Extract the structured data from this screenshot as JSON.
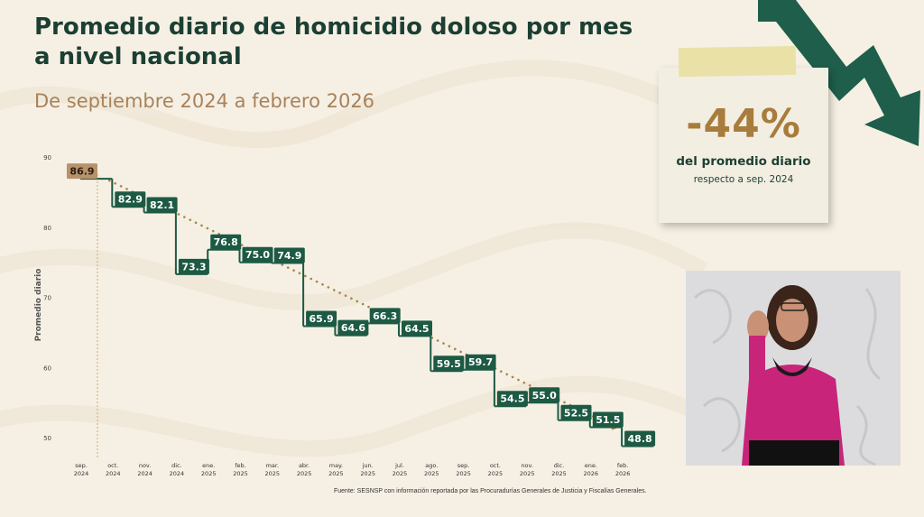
{
  "title": "Promedio diario de homicidio doloso por mes a nivel nacional",
  "subtitle": "De septiembre 2024 a febrero 2026",
  "source": "Fuente: SESNSP con información reportada por las Procuradurías Generales de Justicia y Fiscalías Generales.",
  "callout": {
    "value": "-44%",
    "line1": "del promedio diario",
    "line2": "respecto a sep. 2024"
  },
  "colors": {
    "title": "#1c3f33",
    "subtitle": "#a8825a",
    "bar_label_bg": "#1d5a44",
    "first_label_bg": "#b8926a",
    "trend": "#a8864a",
    "arrow": "#1e5e4a"
  },
  "chart_data": {
    "type": "line",
    "ylabel": "Promedio diario",
    "ylim": [
      48,
      91
    ],
    "yticks": [
      50,
      60,
      70,
      80,
      90
    ],
    "categories": [
      [
        "sep.",
        "2024"
      ],
      [
        "oct.",
        "2024"
      ],
      [
        "nov.",
        "2024"
      ],
      [
        "dic.",
        "2024"
      ],
      [
        "ene.",
        "2025"
      ],
      [
        "feb.",
        "2025"
      ],
      [
        "mar.",
        "2025"
      ],
      [
        "abr.",
        "2025"
      ],
      [
        "may.",
        "2025"
      ],
      [
        "jun.",
        "2025"
      ],
      [
        "jul.",
        "2025"
      ],
      [
        "ago.",
        "2025"
      ],
      [
        "sep.",
        "2025"
      ],
      [
        "oct.",
        "2025"
      ],
      [
        "nov.",
        "2025"
      ],
      [
        "dic.",
        "2025"
      ],
      [
        "ene.",
        "2026"
      ],
      [
        "feb.",
        "2026"
      ]
    ],
    "values": [
      86.9,
      82.9,
      82.1,
      73.3,
      76.8,
      75.0,
      74.9,
      65.9,
      64.6,
      66.3,
      64.5,
      59.5,
      59.7,
      54.5,
      55.0,
      52.5,
      51.5,
      48.8
    ],
    "labels": [
      "86.9",
      "82.9",
      "82.1",
      "73.3",
      "76.8",
      "75.0",
      "74.9",
      "65.9",
      "64.6",
      "66.3",
      "64.5",
      "59.5",
      "59.7",
      "54.5",
      "55.0",
      "52.5",
      "51.5",
      "48.8"
    ],
    "trendline": {
      "from": 86.9,
      "to": 48.8
    }
  }
}
